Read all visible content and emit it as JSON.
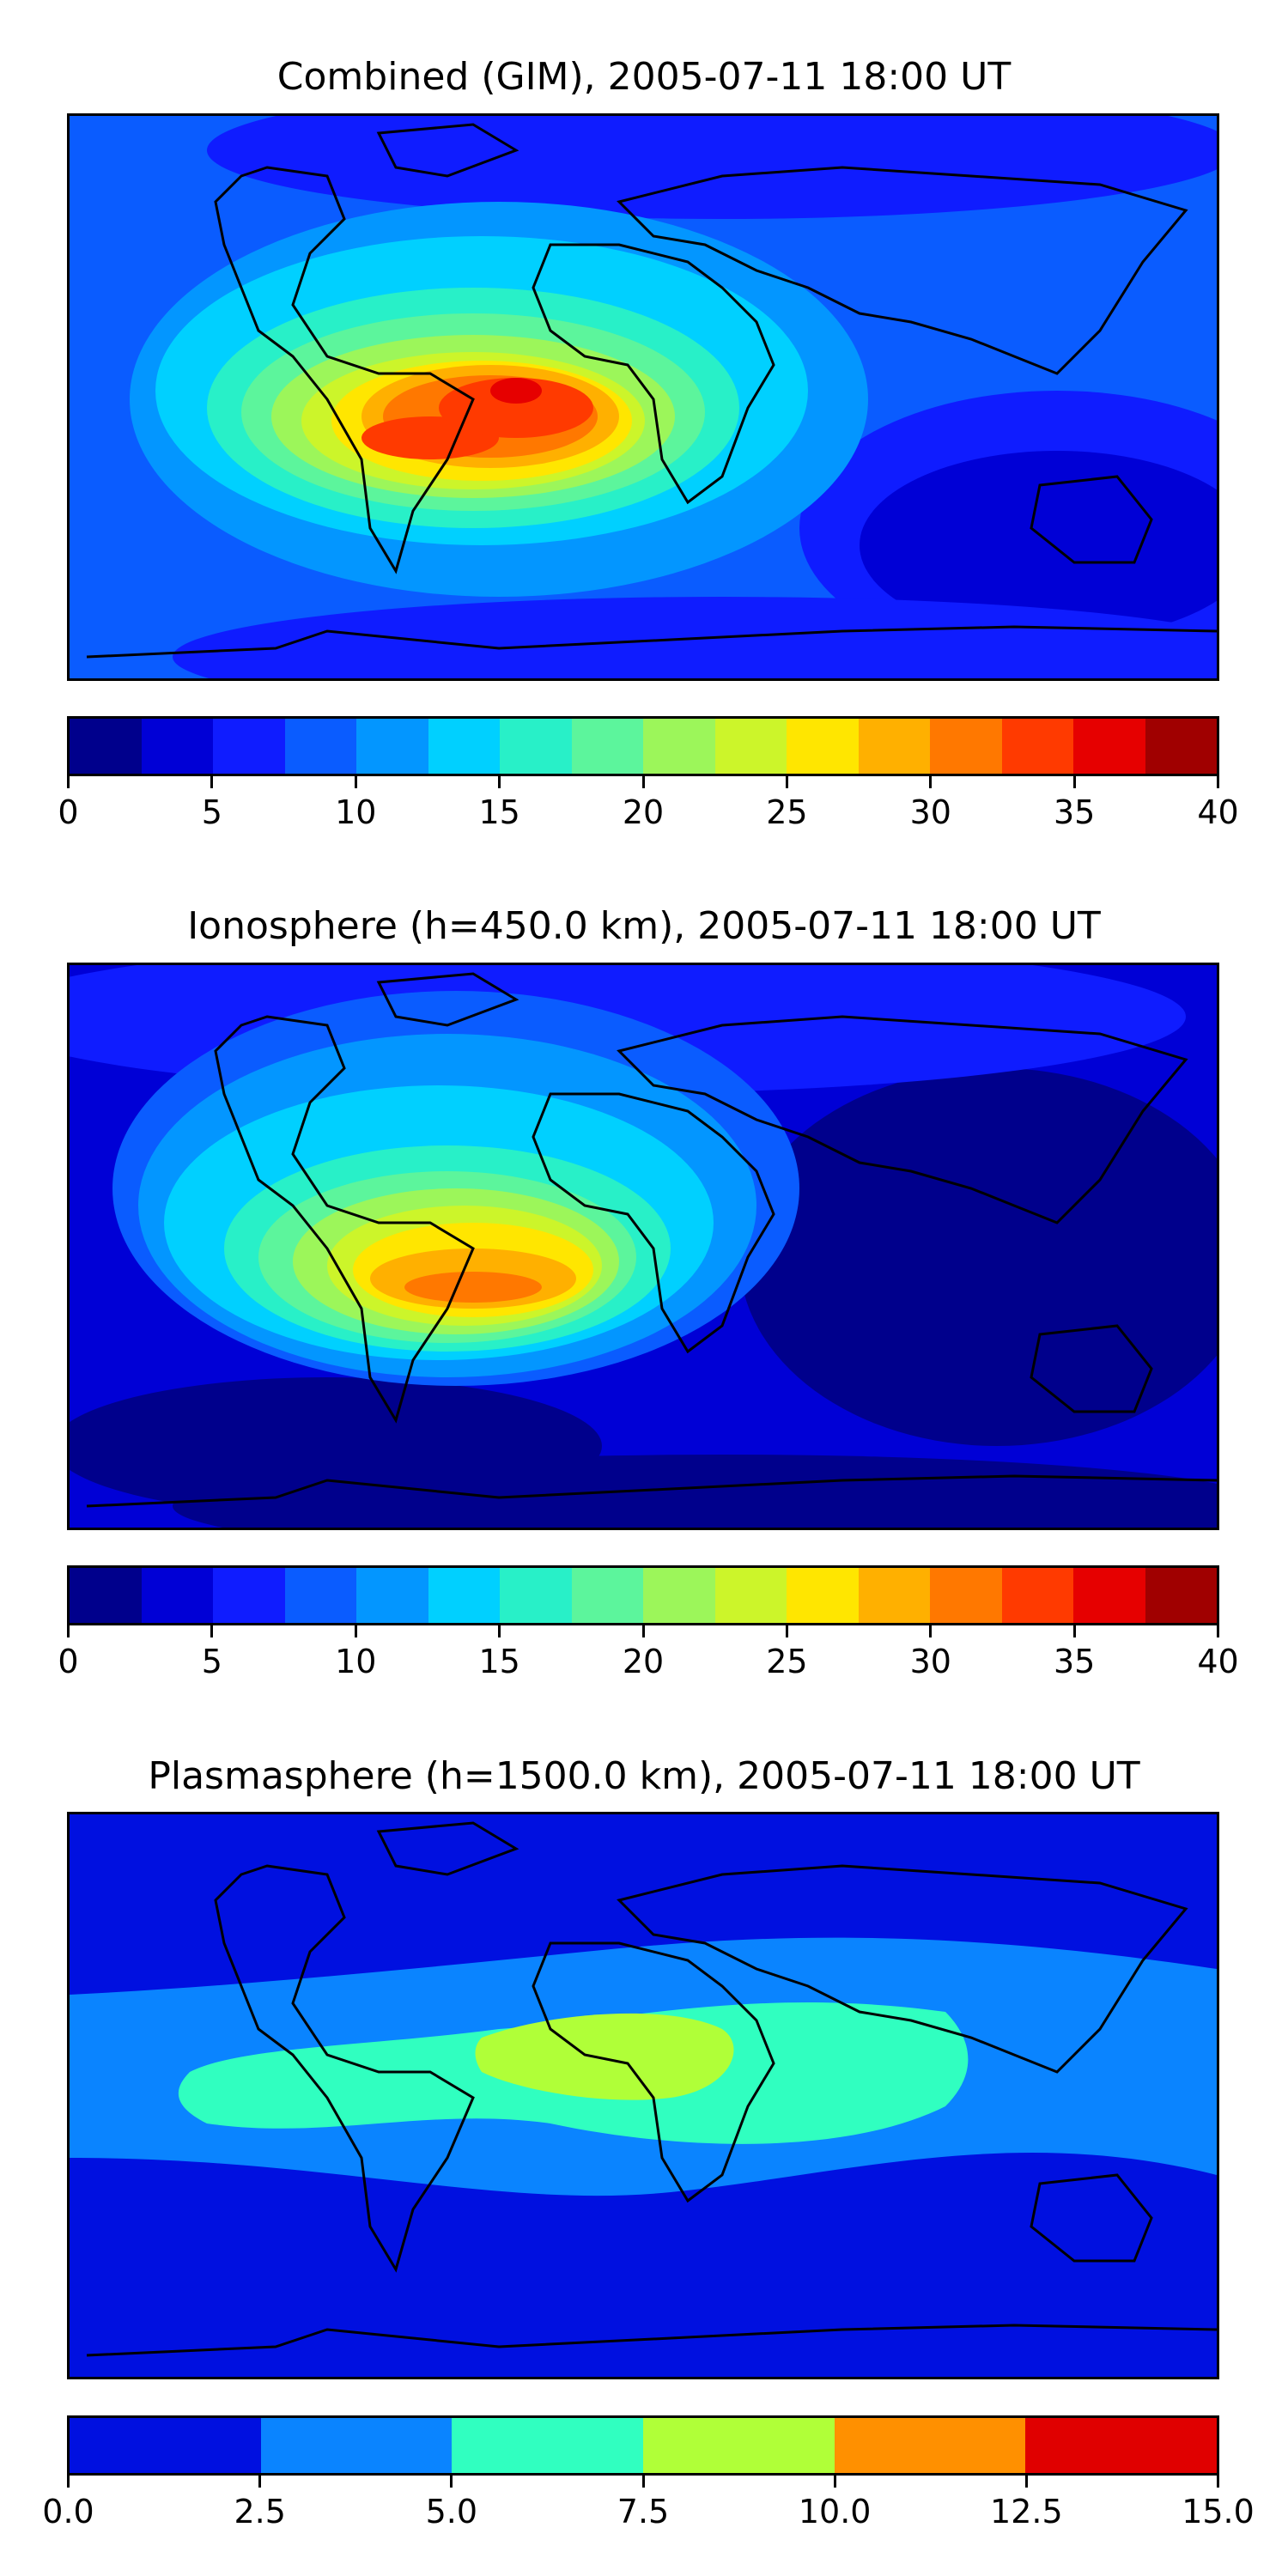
{
  "panels": [
    {
      "id": "combined",
      "title": "Combined (GIM), 2005-07-11 18:00 UT",
      "colorbar": {
        "min": 0,
        "max": 40,
        "ticks": [
          "0",
          "5",
          "10",
          "15",
          "20",
          "25",
          "30",
          "35",
          "40"
        ],
        "colors": [
          "#00008c",
          "#0000d6",
          "#0f1cff",
          "#0a5cff",
          "#0396ff",
          "#00d0ff",
          "#28f0c8",
          "#5cf59c",
          "#9cf65a",
          "#ccf52a",
          "#ffe600",
          "#ffb000",
          "#ff7800",
          "#ff3a00",
          "#e60000",
          "#a00000"
        ]
      }
    },
    {
      "id": "ionosphere",
      "title": "Ionosphere  (h=450.0 km), 2005-07-11 18:00 UT",
      "colorbar": {
        "min": 0,
        "max": 40,
        "ticks": [
          "0",
          "5",
          "10",
          "15",
          "20",
          "25",
          "30",
          "35",
          "40"
        ],
        "colors": [
          "#00008c",
          "#0000d6",
          "#0f1cff",
          "#0a5cff",
          "#0396ff",
          "#00d0ff",
          "#28f0c8",
          "#5cf59c",
          "#9cf65a",
          "#ccf52a",
          "#ffe600",
          "#ffb000",
          "#ff7800",
          "#ff3a00",
          "#e60000",
          "#a00000"
        ]
      }
    },
    {
      "id": "plasmasphere",
      "title": "Plasmasphere (h=1500.0 km), 2005-07-11 18:00 UT",
      "colorbar": {
        "min": 0,
        "max": 15,
        "ticks": [
          "0.0",
          "2.5",
          "5.0",
          "7.5",
          "10.0",
          "12.5",
          "15.0"
        ],
        "colors": [
          "#0010e0",
          "#0a84ff",
          "#30ffc0",
          "#b0ff38",
          "#ff9000",
          "#e00000"
        ]
      }
    }
  ]
}
